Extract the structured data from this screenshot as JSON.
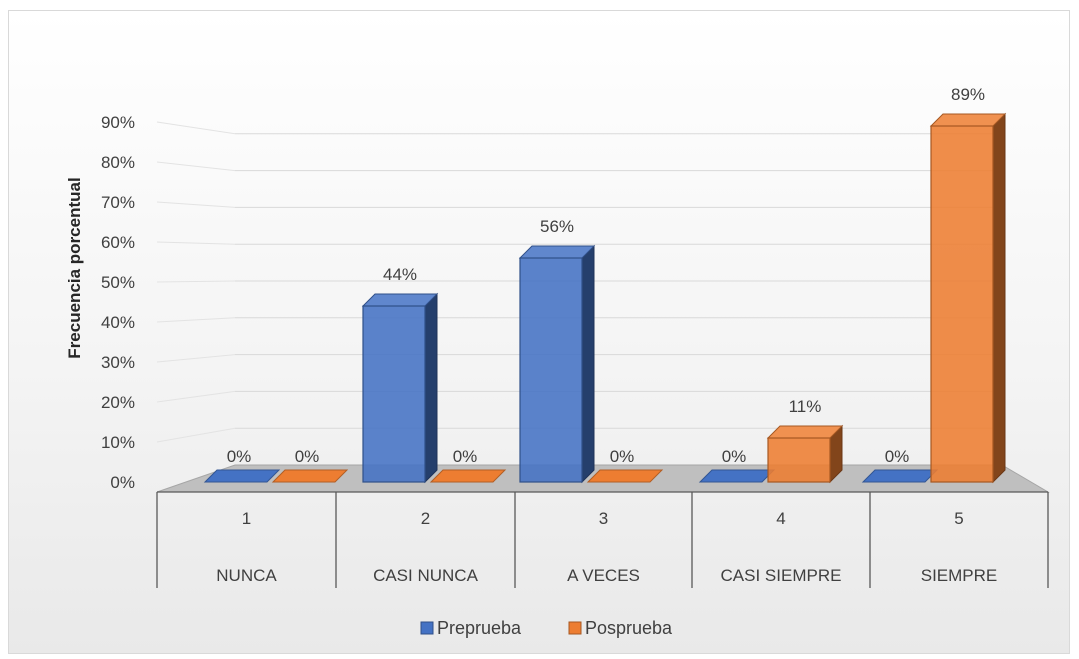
{
  "chart_data": {
    "type": "bar",
    "title": "",
    "ylabel": "Frecuencia porcentual",
    "xlabel": "",
    "ylim": [
      0,
      90
    ],
    "yticks": [
      "0%",
      "10%",
      "20%",
      "30%",
      "40%",
      "50%",
      "60%",
      "70%",
      "80%",
      "90%"
    ],
    "categories": [
      {
        "number": "1",
        "name": "NUNCA"
      },
      {
        "number": "2",
        "name": "CASI NUNCA"
      },
      {
        "number": "3",
        "name": "A VECES"
      },
      {
        "number": "4",
        "name": "CASI SIEMPRE"
      },
      {
        "number": "5",
        "name": "SIEMPRE"
      }
    ],
    "series": [
      {
        "name": "Preprueba",
        "color": "#4472c4",
        "values": [
          0,
          44,
          56,
          0,
          0
        ],
        "labels": [
          "0%",
          "44%",
          "56%",
          "0%",
          "0%"
        ]
      },
      {
        "name": "Posprueba",
        "color": "#ed7d31",
        "values": [
          0,
          0,
          0,
          11,
          89
        ],
        "labels": [
          "0%",
          "0%",
          "0%",
          "11%",
          "89%"
        ]
      }
    ],
    "grid": true,
    "legend_position": "bottom",
    "style": "3d-clustered-column"
  }
}
